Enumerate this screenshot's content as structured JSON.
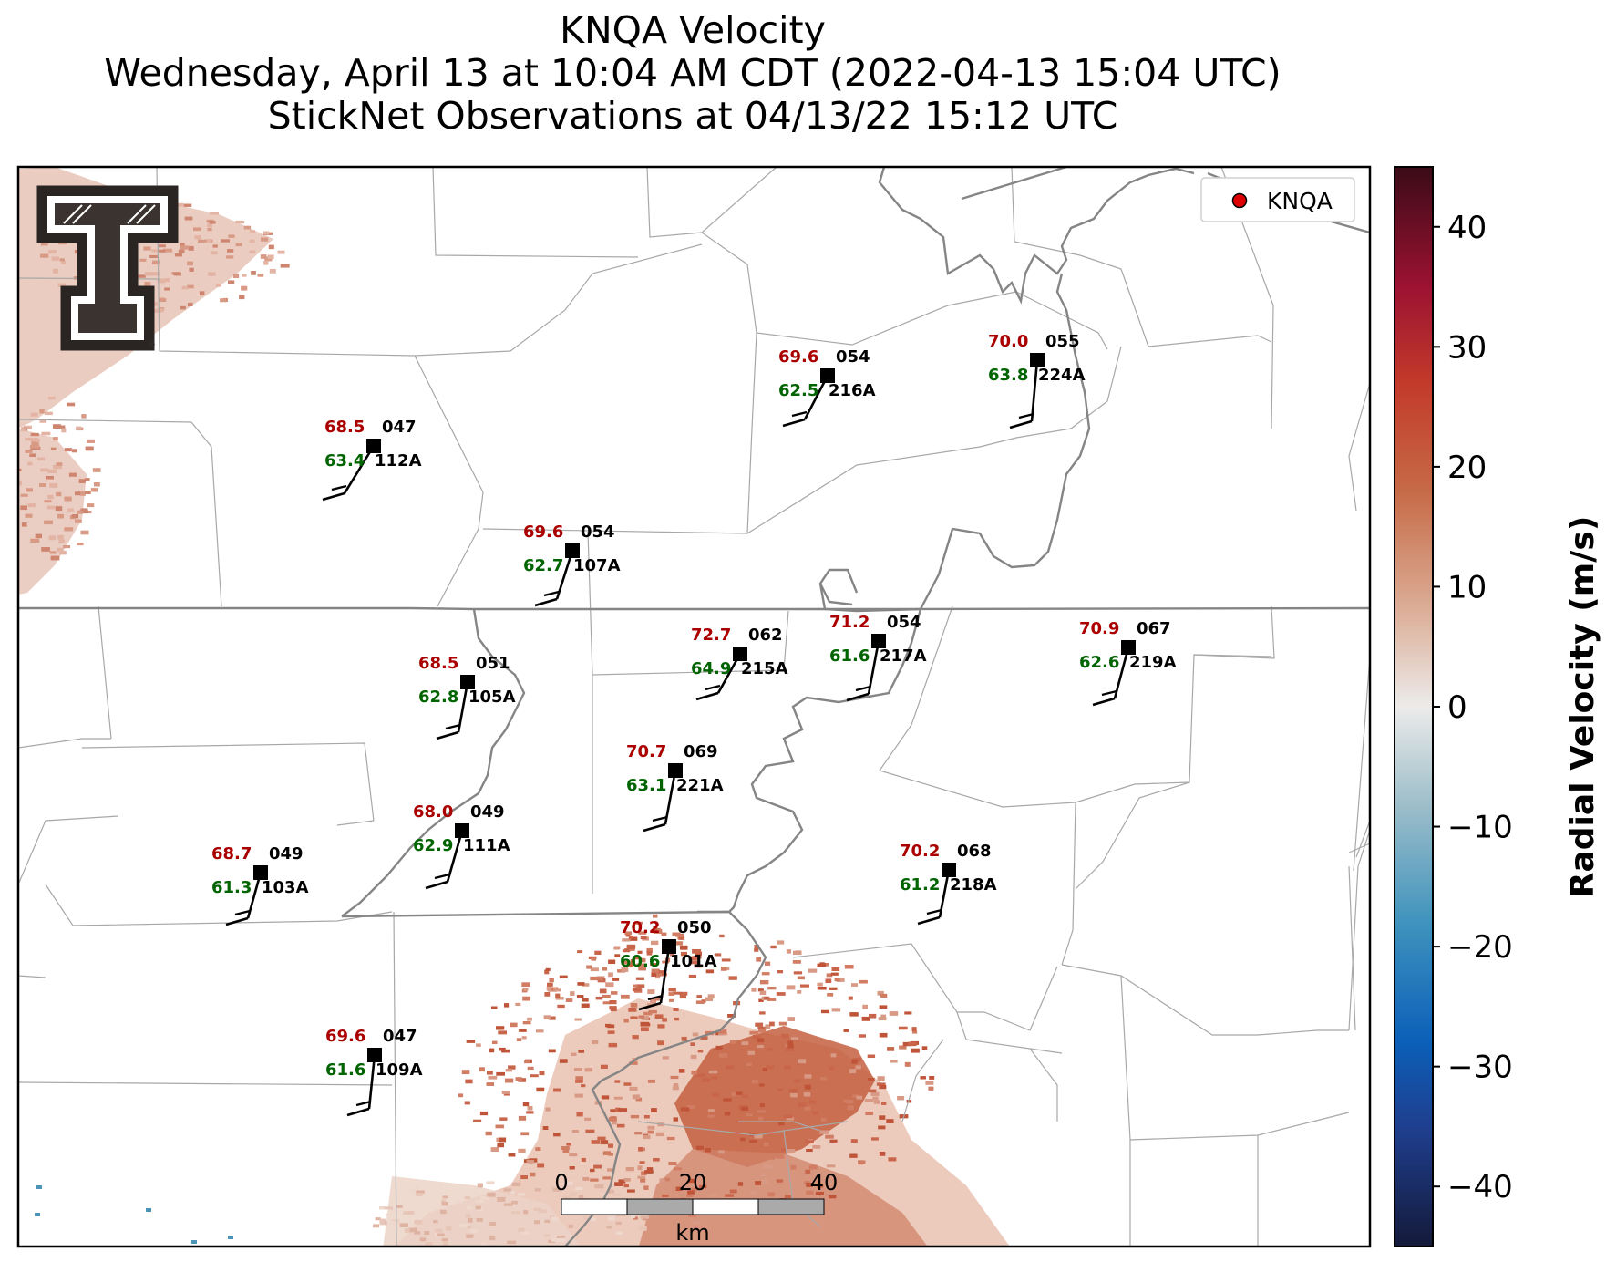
{
  "title": {
    "line1": "KNQA Velocity",
    "line2": "Wednesday, April 13 at 10:04 AM CDT (2022-04-13 15:04 UTC)",
    "line3": "StickNet Observations at 04/13/22 15:12 UTC"
  },
  "legend": {
    "label": "KNQA",
    "marker_color": "#dd0000"
  },
  "colorbar": {
    "label": "Radial Velocity (m/s)",
    "ticks": [
      "40",
      "30",
      "20",
      "10",
      "0",
      "−10",
      "−20",
      "−30",
      "−40"
    ],
    "range": [
      -45,
      45
    ],
    "stops": [
      {
        "v": -45,
        "c": "#141a3a"
      },
      {
        "v": -35,
        "c": "#1f3f8f"
      },
      {
        "v": -28,
        "c": "#0b5fb8"
      },
      {
        "v": -18,
        "c": "#3f93bd"
      },
      {
        "v": -8,
        "c": "#9fbfca"
      },
      {
        "v": 0,
        "c": "#ecebea"
      },
      {
        "v": 8,
        "c": "#dcae98"
      },
      {
        "v": 18,
        "c": "#c66a46"
      },
      {
        "v": 27,
        "c": "#c33a2a"
      },
      {
        "v": 35,
        "c": "#9c1232"
      },
      {
        "v": 45,
        "c": "#3a0b17"
      }
    ]
  },
  "scale_bar": {
    "labels": [
      "0",
      "20",
      "40"
    ],
    "unit": "km"
  },
  "logo": {
    "name": "Texas Tech Double T"
  },
  "stations": [
    {
      "id": "112A",
      "temp": "68.5",
      "dew": "63.4",
      "dir": "047"
    },
    {
      "id": "216A",
      "temp": "69.6",
      "dew": "62.5",
      "dir": "054"
    },
    {
      "id": "224A",
      "temp": "70.0",
      "dew": "63.8",
      "dir": "055"
    },
    {
      "id": "107A",
      "temp": "69.6",
      "dew": "62.7",
      "dir": "054"
    },
    {
      "id": "215A",
      "temp": "72.7",
      "dew": "64.9",
      "dir": "062"
    },
    {
      "id": "217A",
      "temp": "71.2",
      "dew": "61.6",
      "dir": "054"
    },
    {
      "id": "219A",
      "temp": "70.9",
      "dew": "62.6",
      "dir": "067"
    },
    {
      "id": "105A",
      "temp": "68.5",
      "dew": "62.8",
      "dir": "051"
    },
    {
      "id": "221A",
      "temp": "70.7",
      "dew": "63.1",
      "dir": "069"
    },
    {
      "id": "111A",
      "temp": "68.0",
      "dew": "62.9",
      "dir": "049"
    },
    {
      "id": "103A",
      "temp": "68.7",
      "dew": "61.3",
      "dir": "049"
    },
    {
      "id": "218A",
      "temp": "70.2",
      "dew": "61.2",
      "dir": "068"
    },
    {
      "id": "101A",
      "temp": "70.2",
      "dew": "60.6",
      "dir": "050"
    },
    {
      "id": "109A",
      "temp": "69.6",
      "dew": "61.6",
      "dir": "047"
    }
  ]
}
